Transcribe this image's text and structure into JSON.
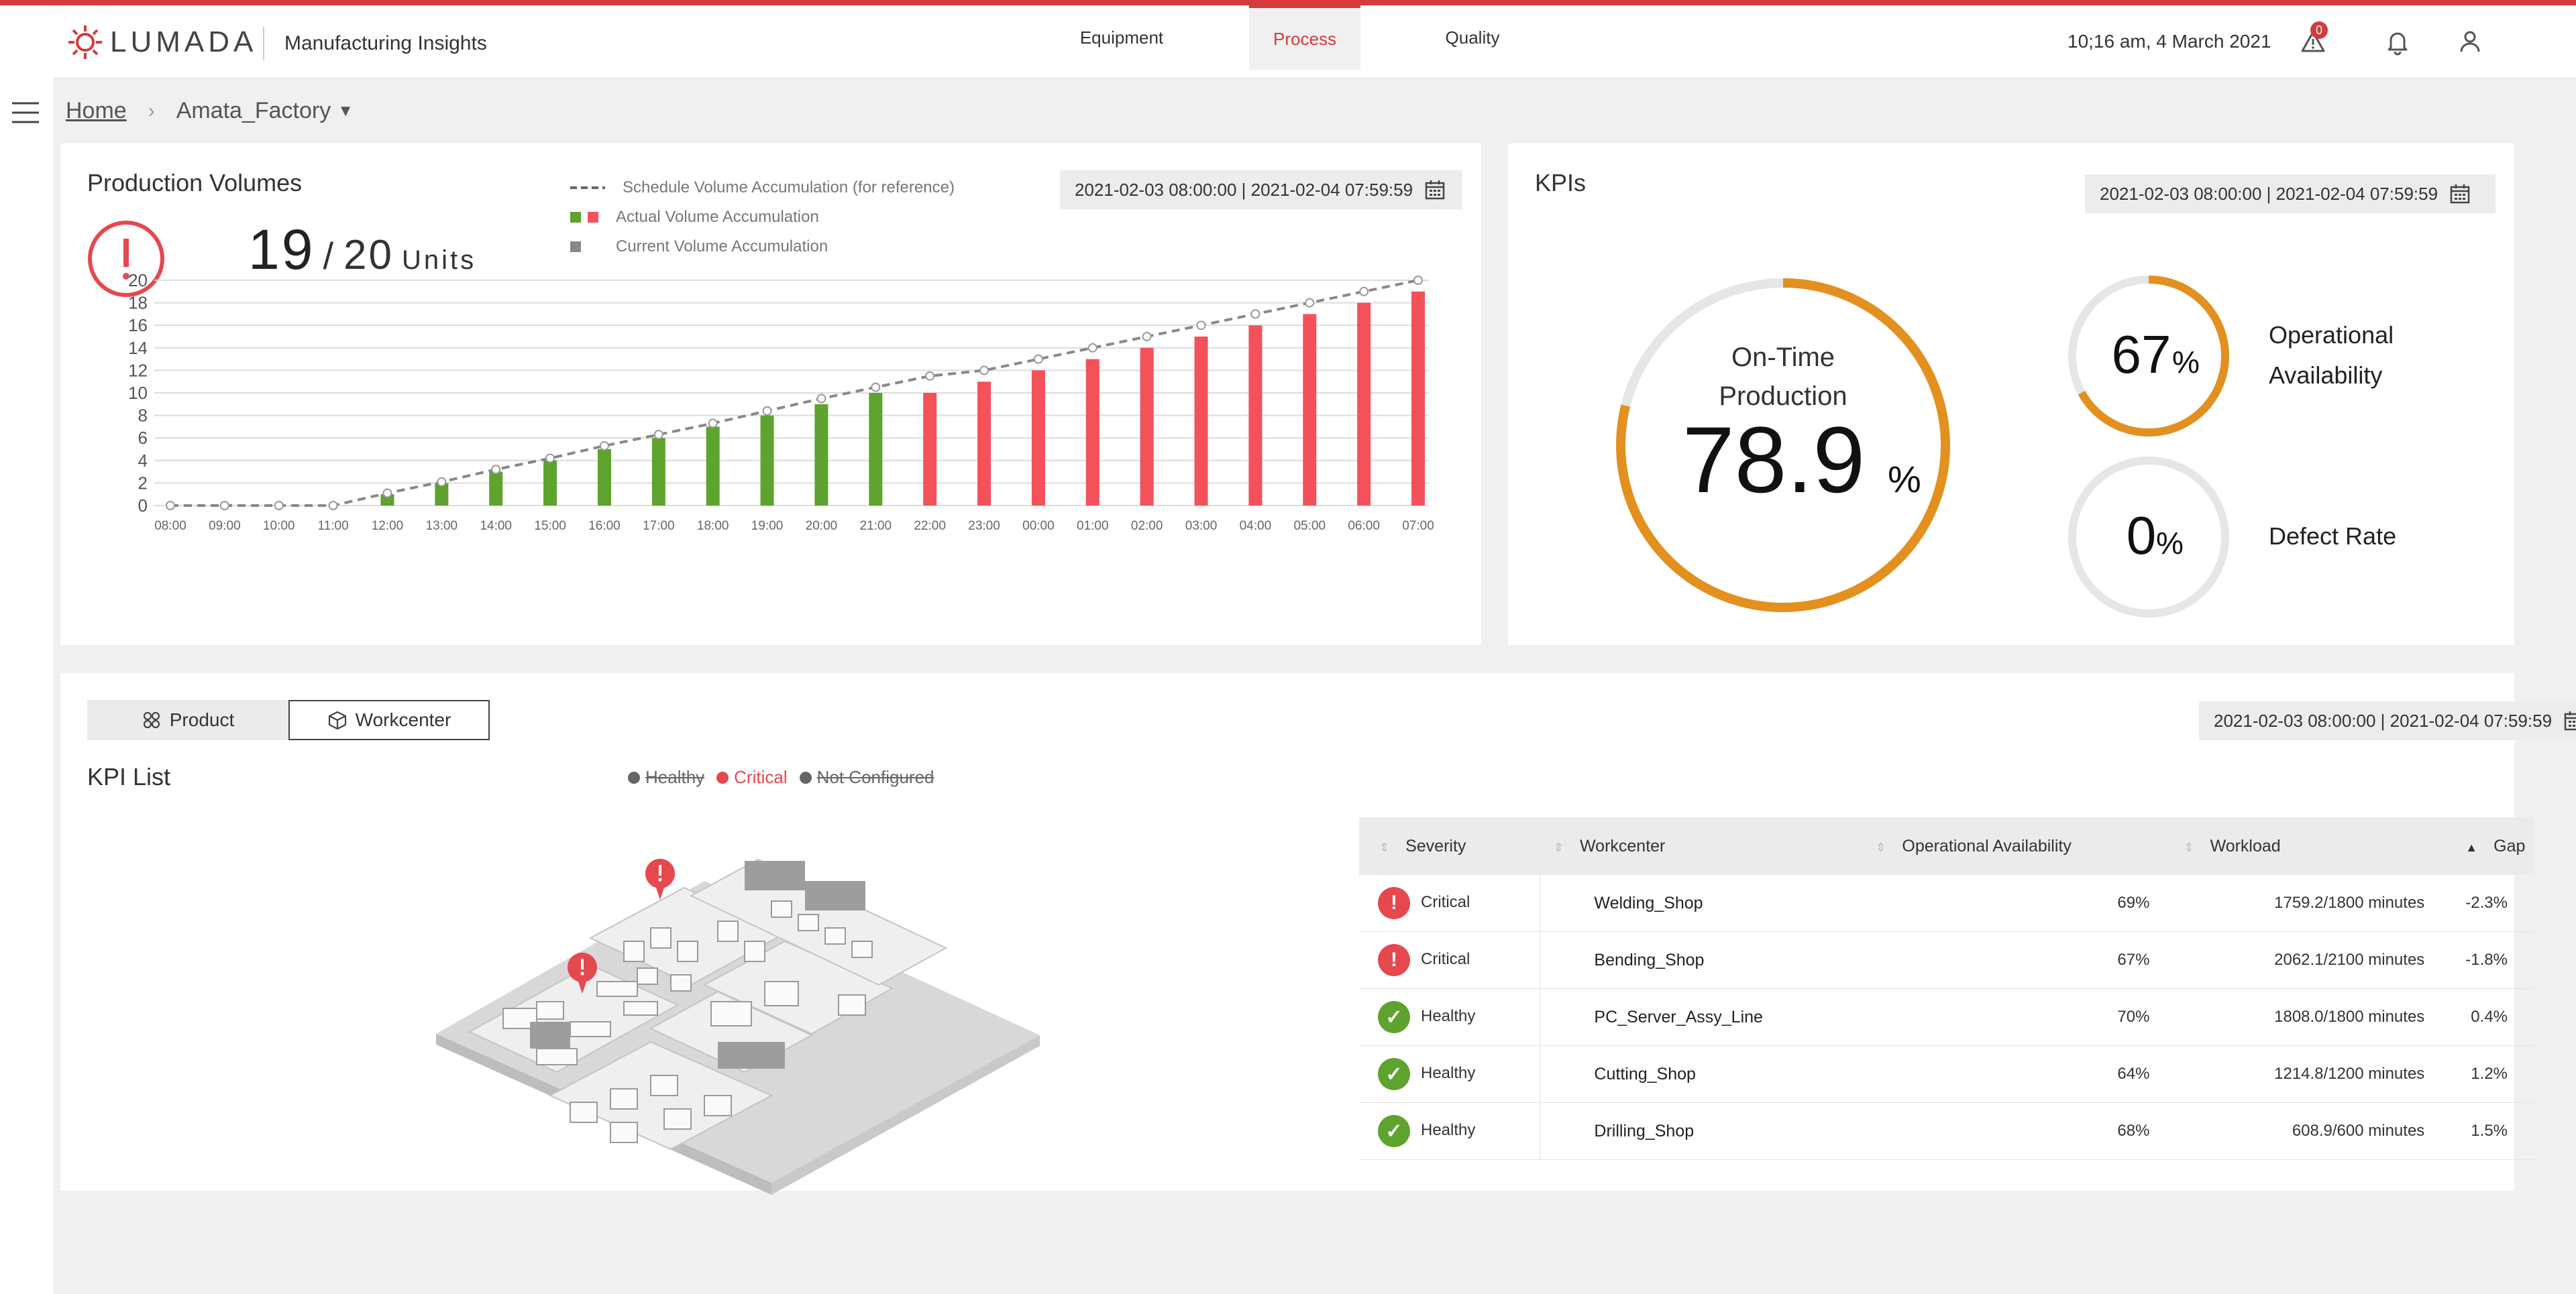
{
  "header": {
    "brand": "LUMADA",
    "app_name": "Manufacturing Insights",
    "tabs": [
      {
        "label": "Equipment"
      },
      {
        "label": "Process"
      },
      {
        "label": "Quality"
      }
    ],
    "datetime": "10;16 am, 4 March 2021",
    "alert_count": "0",
    "icons": [
      "warning-icon",
      "bell-icon",
      "user-icon"
    ]
  },
  "breadcrumb": {
    "home": "Home",
    "current": "Amata_Factory"
  },
  "production": {
    "title": "Production Volumes",
    "current": "19",
    "slash": "/",
    "target": "20",
    "unit": "Units",
    "date_range": "2021-02-03 08:00:00 | 2021-02-04 07:59:59",
    "legend": {
      "schedule": "Schedule Volume Accumulation (for reference)",
      "actual": "Actual Volume Accumulation",
      "current": "Current Volume Accumulation"
    }
  },
  "kpis": {
    "title": "KPIs",
    "date_range": "2021-02-03 08:00:00 | 2021-02-04 07:59:59",
    "on_time_label_1": "On-Time",
    "on_time_label_2": "Production",
    "on_time_value": "78.9",
    "on_time_fraction": 0.789,
    "availability_value": "67",
    "availability_fraction": 0.67,
    "availability_label_1": "Operational",
    "availability_label_2": "Availability",
    "defect_value": "0",
    "defect_fraction": 0,
    "defect_label": "Defect Rate",
    "percent": "%",
    "accent": "#e3901f"
  },
  "kpi_list": {
    "toggle": {
      "product": "Product",
      "workcenter": "Workcenter"
    },
    "title": "KPI List",
    "legend": {
      "healthy": "Healthy",
      "critical": "Critical",
      "not_configured": "Not Configured"
    },
    "date_range": "2021-02-03 08:00:00 | 2021-02-04 07:59:59",
    "columns": [
      "Severity",
      "Workcenter",
      "Operational Availability",
      "Workload",
      "Gap"
    ],
    "rows": [
      {
        "severity": "Critical",
        "workcenter": "Welding_Shop",
        "availability": "69%",
        "workload": "1759.2/1800 minutes",
        "gap": "-2.3%"
      },
      {
        "severity": "Critical",
        "workcenter": "Bending_Shop",
        "availability": "67%",
        "workload": "2062.1/2100 minutes",
        "gap": "-1.8%"
      },
      {
        "severity": "Healthy",
        "workcenter": "PC_Server_Assy_Line",
        "availability": "70%",
        "workload": "1808.0/1800 minutes",
        "gap": "0.4%"
      },
      {
        "severity": "Healthy",
        "workcenter": "Cutting_Shop",
        "availability": "64%",
        "workload": "1214.8/1200 minutes",
        "gap": "1.2%"
      },
      {
        "severity": "Healthy",
        "workcenter": "Drilling_Shop",
        "availability": "68%",
        "workload": "608.9/600 minutes",
        "gap": "1.5%"
      }
    ],
    "colors": {
      "critical": "#e5484d",
      "healthy": "#5ea32d",
      "not_configured": "#666666"
    }
  },
  "chart_data": {
    "type": "bar",
    "categories": [
      "08:00",
      "09:00",
      "10:00",
      "11:00",
      "12:00",
      "13:00",
      "14:00",
      "15:00",
      "16:00",
      "17:00",
      "18:00",
      "19:00",
      "20:00",
      "21:00",
      "22:00",
      "23:00",
      "00:00",
      "01:00",
      "02:00",
      "03:00",
      "04:00",
      "05:00",
      "06:00",
      "07:00"
    ],
    "series": [
      {
        "name": "Actual Volume Accumulation",
        "values": [
          0,
          0,
          0,
          0,
          1,
          2,
          3,
          4,
          5,
          6,
          7,
          8,
          9,
          10,
          10,
          11,
          12,
          13,
          14,
          15,
          16,
          17,
          18,
          19
        ]
      },
      {
        "name": "Schedule Volume Accumulation (for reference)",
        "values": [
          0,
          0,
          0,
          0,
          1.1,
          2.1,
          3.2,
          4.2,
          5.3,
          6.3,
          7.3,
          8.4,
          9.5,
          10.5,
          11.5,
          12,
          13,
          14,
          15,
          16,
          17,
          18,
          19,
          20
        ]
      }
    ],
    "actual_colors": [
      "green",
      "green",
      "green",
      "green",
      "green",
      "green",
      "green",
      "green",
      "green",
      "green",
      "green",
      "green",
      "green",
      "green",
      "red",
      "red",
      "red",
      "red",
      "red",
      "red",
      "red",
      "red",
      "red",
      "red"
    ],
    "yticks": [
      0,
      2,
      4,
      6,
      8,
      10,
      12,
      14,
      16,
      18,
      20
    ],
    "ylim": [
      0,
      20
    ],
    "grid": true,
    "colors": {
      "green": "#5ea32d",
      "red": "#f4515a",
      "schedule": "#888888"
    }
  }
}
